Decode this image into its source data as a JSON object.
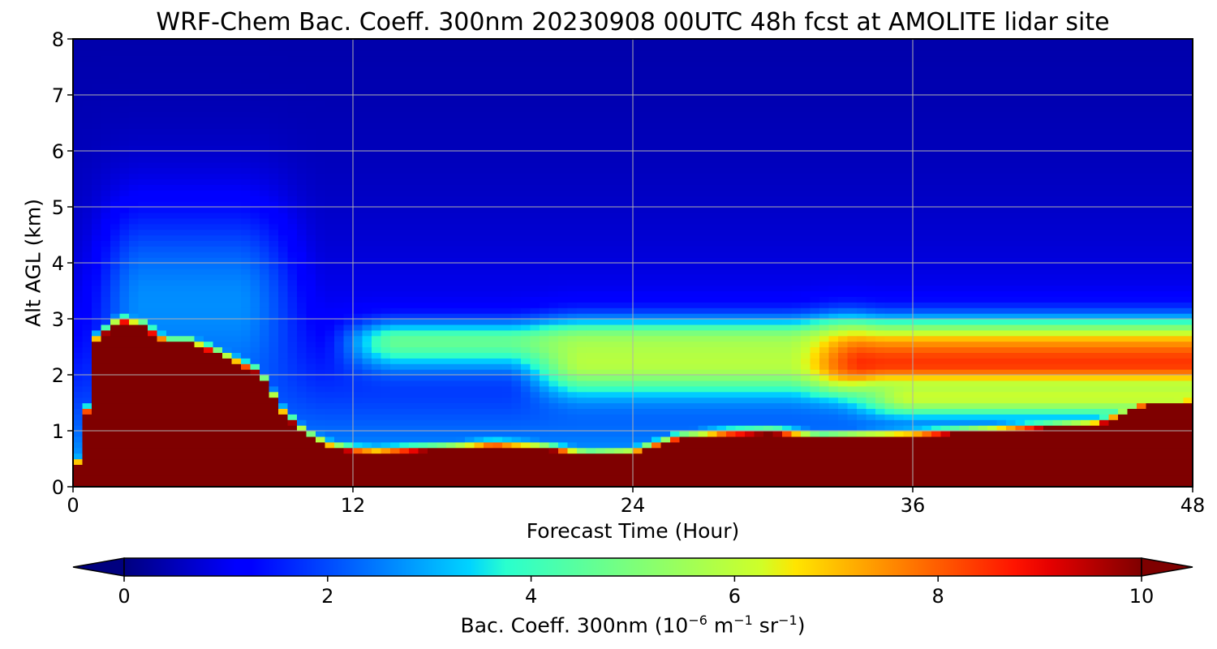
{
  "chart_data": {
    "type": "heatmap",
    "title": "WRF-Chem Bac. Coeff. 300nm  20230908 00UTC 48h fcst at AMOLITE lidar site",
    "xlabel": "Forecast Time (Hour)",
    "ylabel": "Alt AGL (km)",
    "xlim": [
      0,
      48
    ],
    "ylim": [
      0,
      8
    ],
    "xticks": [
      "0",
      "12",
      "24",
      "36",
      "48"
    ],
    "yticks": [
      "0",
      "1",
      "2",
      "3",
      "4",
      "5",
      "6",
      "7",
      "8"
    ],
    "grid": true,
    "colormap": "jet",
    "colorbar": {
      "label_main": "Bac. Coeff. 300nm  (10",
      "exp1": "−6",
      "label_mid": " m",
      "exp2": "−1",
      "label_mid2": " sr",
      "exp3": "−1",
      "label_end": ")",
      "range": [
        0,
        10
      ],
      "ticks": [
        "0",
        "2",
        "4",
        "6",
        "8",
        "10"
      ],
      "extend": "both",
      "orientation": "horizontal"
    },
    "hours": [
      0,
      0.5,
      1,
      2,
      3,
      4,
      5,
      6,
      7,
      8,
      9,
      10,
      11,
      12,
      13,
      14,
      16,
      18,
      20,
      22,
      24,
      26,
      28,
      30,
      32,
      34,
      36,
      38,
      40,
      42,
      44,
      46,
      48
    ],
    "altitudes_km": [
      0,
      0.25,
      0.5,
      0.75,
      1,
      1.25,
      1.5,
      1.75,
      2,
      2.25,
      2.5,
      2.75,
      3,
      3.25,
      3.5,
      3.75,
      4,
      4.5,
      5,
      5.5,
      6,
      6.5,
      7,
      7.5,
      8
    ],
    "surface_layer_top_km": [
      0,
      1.0,
      2.6,
      2.95,
      2.85,
      2.55,
      2.55,
      2.4,
      2.2,
      2.0,
      1.3,
      0.9,
      0.7,
      0.62,
      0.6,
      0.62,
      0.66,
      0.72,
      0.68,
      0.55,
      0.58,
      0.85,
      0.92,
      0.95,
      0.85,
      0.88,
      0.9,
      0.95,
      1.0,
      1.05,
      1.1,
      1.45,
      1.5
    ],
    "aerosol_layers": [
      {
        "t_start": 12,
        "t_end": 48,
        "peak_km": 2.6,
        "top_km": 3.05,
        "bottom_km": 2.0,
        "peak_value": 5.0
      },
      {
        "t_start": 20,
        "t_end": 32,
        "peak_km": 2.2,
        "top_km": 3.0,
        "bottom_km": 1.5,
        "peak_value": 6.2
      },
      {
        "t_start": 32,
        "t_end": 48,
        "peak_km": 2.2,
        "top_km": 3.0,
        "bottom_km": 1.6,
        "peak_value": 9.0
      },
      {
        "t_start": 34,
        "t_end": 48,
        "peak_km": 1.6,
        "top_km": 2.0,
        "bottom_km": 1.2,
        "peak_value": 6.5
      }
    ],
    "upper_background": {
      "near_surface_value": 3.5,
      "at_8km_value": 0.3,
      "early_plume_hours": [
        1,
        9
      ],
      "early_plume_value": 3.2
    }
  }
}
